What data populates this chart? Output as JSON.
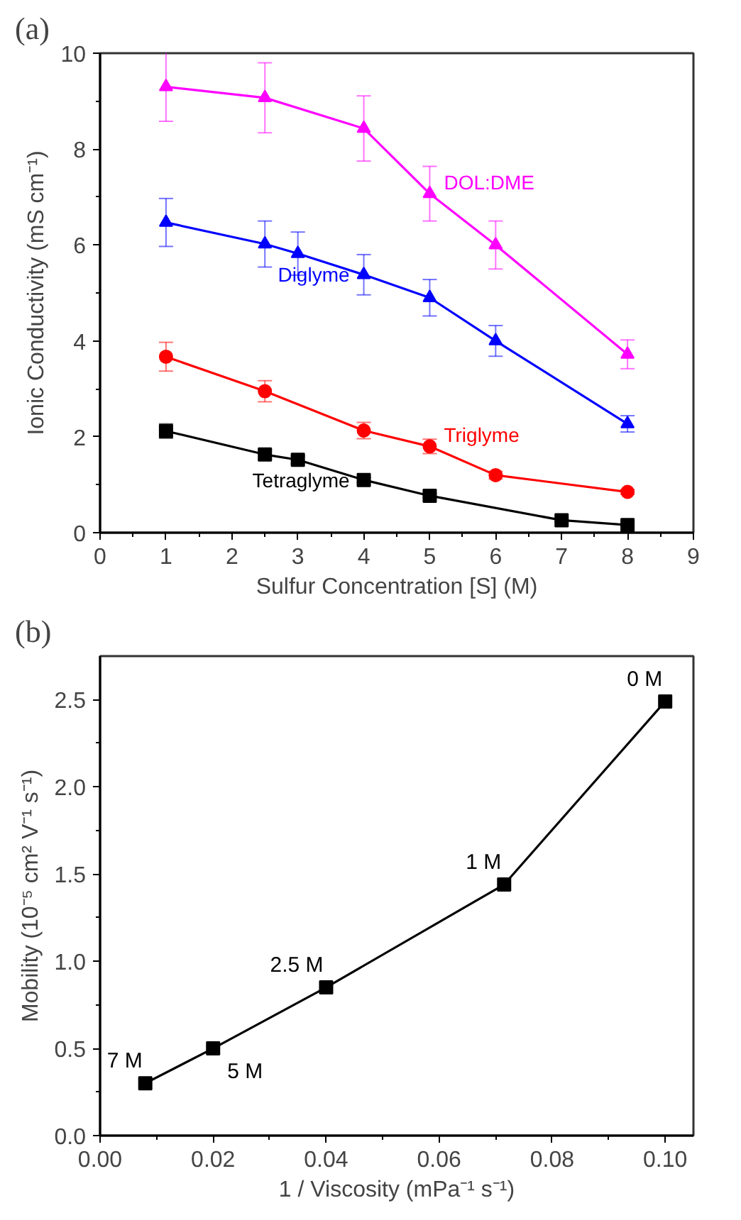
{
  "chart_data": [
    {
      "type": "line",
      "title": "(a)",
      "xlabel": "Sulfur Concentration [S] (M)",
      "ylabel": "Ionic Conductivity (mS cm⁻¹)",
      "xlim": [
        0,
        9
      ],
      "ylim": [
        0,
        10
      ],
      "xticks": [
        0,
        1,
        2,
        3,
        4,
        5,
        6,
        7,
        8,
        9
      ],
      "yticks": [
        0,
        2,
        4,
        6,
        8,
        10
      ],
      "grid": false,
      "series": [
        {
          "name": "DOL:DME",
          "color": "#ff00ff",
          "marker": "triangle",
          "x": [
            1,
            2.5,
            4,
            5,
            6,
            8
          ],
          "values": [
            9.3,
            9.07,
            8.43,
            7.07,
            6.0,
            3.72
          ],
          "errors": [
            0.72,
            0.73,
            0.68,
            0.57,
            0.5,
            0.3
          ]
        },
        {
          "name": "Diglyme",
          "color": "#0000ff",
          "marker": "triangle",
          "x": [
            1,
            2.5,
            3,
            4,
            5,
            6,
            8
          ],
          "values": [
            6.47,
            6.02,
            5.82,
            5.38,
            4.9,
            4.0,
            2.27
          ],
          "errors": [
            0.5,
            0.48,
            0.45,
            0.42,
            0.38,
            0.32,
            0.17
          ]
        },
        {
          "name": "Triglyme",
          "color": "#ff0000",
          "marker": "circle",
          "x": [
            1,
            2.5,
            4,
            5,
            6,
            8
          ],
          "values": [
            3.67,
            2.95,
            2.13,
            1.8,
            1.2,
            0.85
          ],
          "errors": [
            0.3,
            0.22,
            0.17,
            0.15,
            0.08,
            0.05
          ]
        },
        {
          "name": "Tetraglyme",
          "color": "#000000",
          "marker": "square",
          "x": [
            1,
            2.5,
            3,
            4,
            5,
            7,
            8
          ],
          "values": [
            2.12,
            1.63,
            1.52,
            1.1,
            0.77,
            0.26,
            0.16
          ],
          "errors": [
            0.15,
            0.1,
            0.08,
            0.05,
            0.04,
            0.03,
            0.03
          ]
        }
      ]
    },
    {
      "type": "line",
      "title": "(b)",
      "xlabel": "1 / Viscosity (mPa⁻¹ s⁻¹)",
      "ylabel": "Mobility (10⁻⁵ cm² V⁻¹ s⁻¹)",
      "xlim": [
        0,
        0.105
      ],
      "ylim": [
        0,
        2.75
      ],
      "xticks": [
        {
          "value": 0,
          "label": "0.00"
        },
        {
          "value": 0.02,
          "label": "0.02"
        },
        {
          "value": 0.04,
          "label": "0.04"
        },
        {
          "value": 0.06,
          "label": "0.06"
        },
        {
          "value": 0.08,
          "label": "0.08"
        },
        {
          "value": 0.1,
          "label": "0.10"
        }
      ],
      "yticks": [
        {
          "value": 0,
          "label": "0.0"
        },
        {
          "value": 0.5,
          "label": "0.5"
        },
        {
          "value": 1,
          "label": "1.0"
        },
        {
          "value": 1.5,
          "label": "1.5"
        },
        {
          "value": 2,
          "label": "2.0"
        },
        {
          "value": 2.5,
          "label": "2.5"
        }
      ],
      "grid": false,
      "marker": "square",
      "series": [
        {
          "color": "#000000",
          "x": [
            0.008,
            0.02,
            0.04,
            0.0715,
            0.1
          ],
          "values": [
            0.3,
            0.5,
            0.85,
            1.44,
            2.49
          ]
        }
      ],
      "annotations": [
        {
          "text": "7 M",
          "x": 0.008,
          "y": 0.3
        },
        {
          "text": "5 M",
          "x": 0.02,
          "y": 0.5
        },
        {
          "text": "2.5 M",
          "x": 0.04,
          "y": 0.85
        },
        {
          "text": "1 M",
          "x": 0.0715,
          "y": 1.44
        },
        {
          "text": "0 M",
          "x": 0.1,
          "y": 2.49
        }
      ]
    }
  ]
}
